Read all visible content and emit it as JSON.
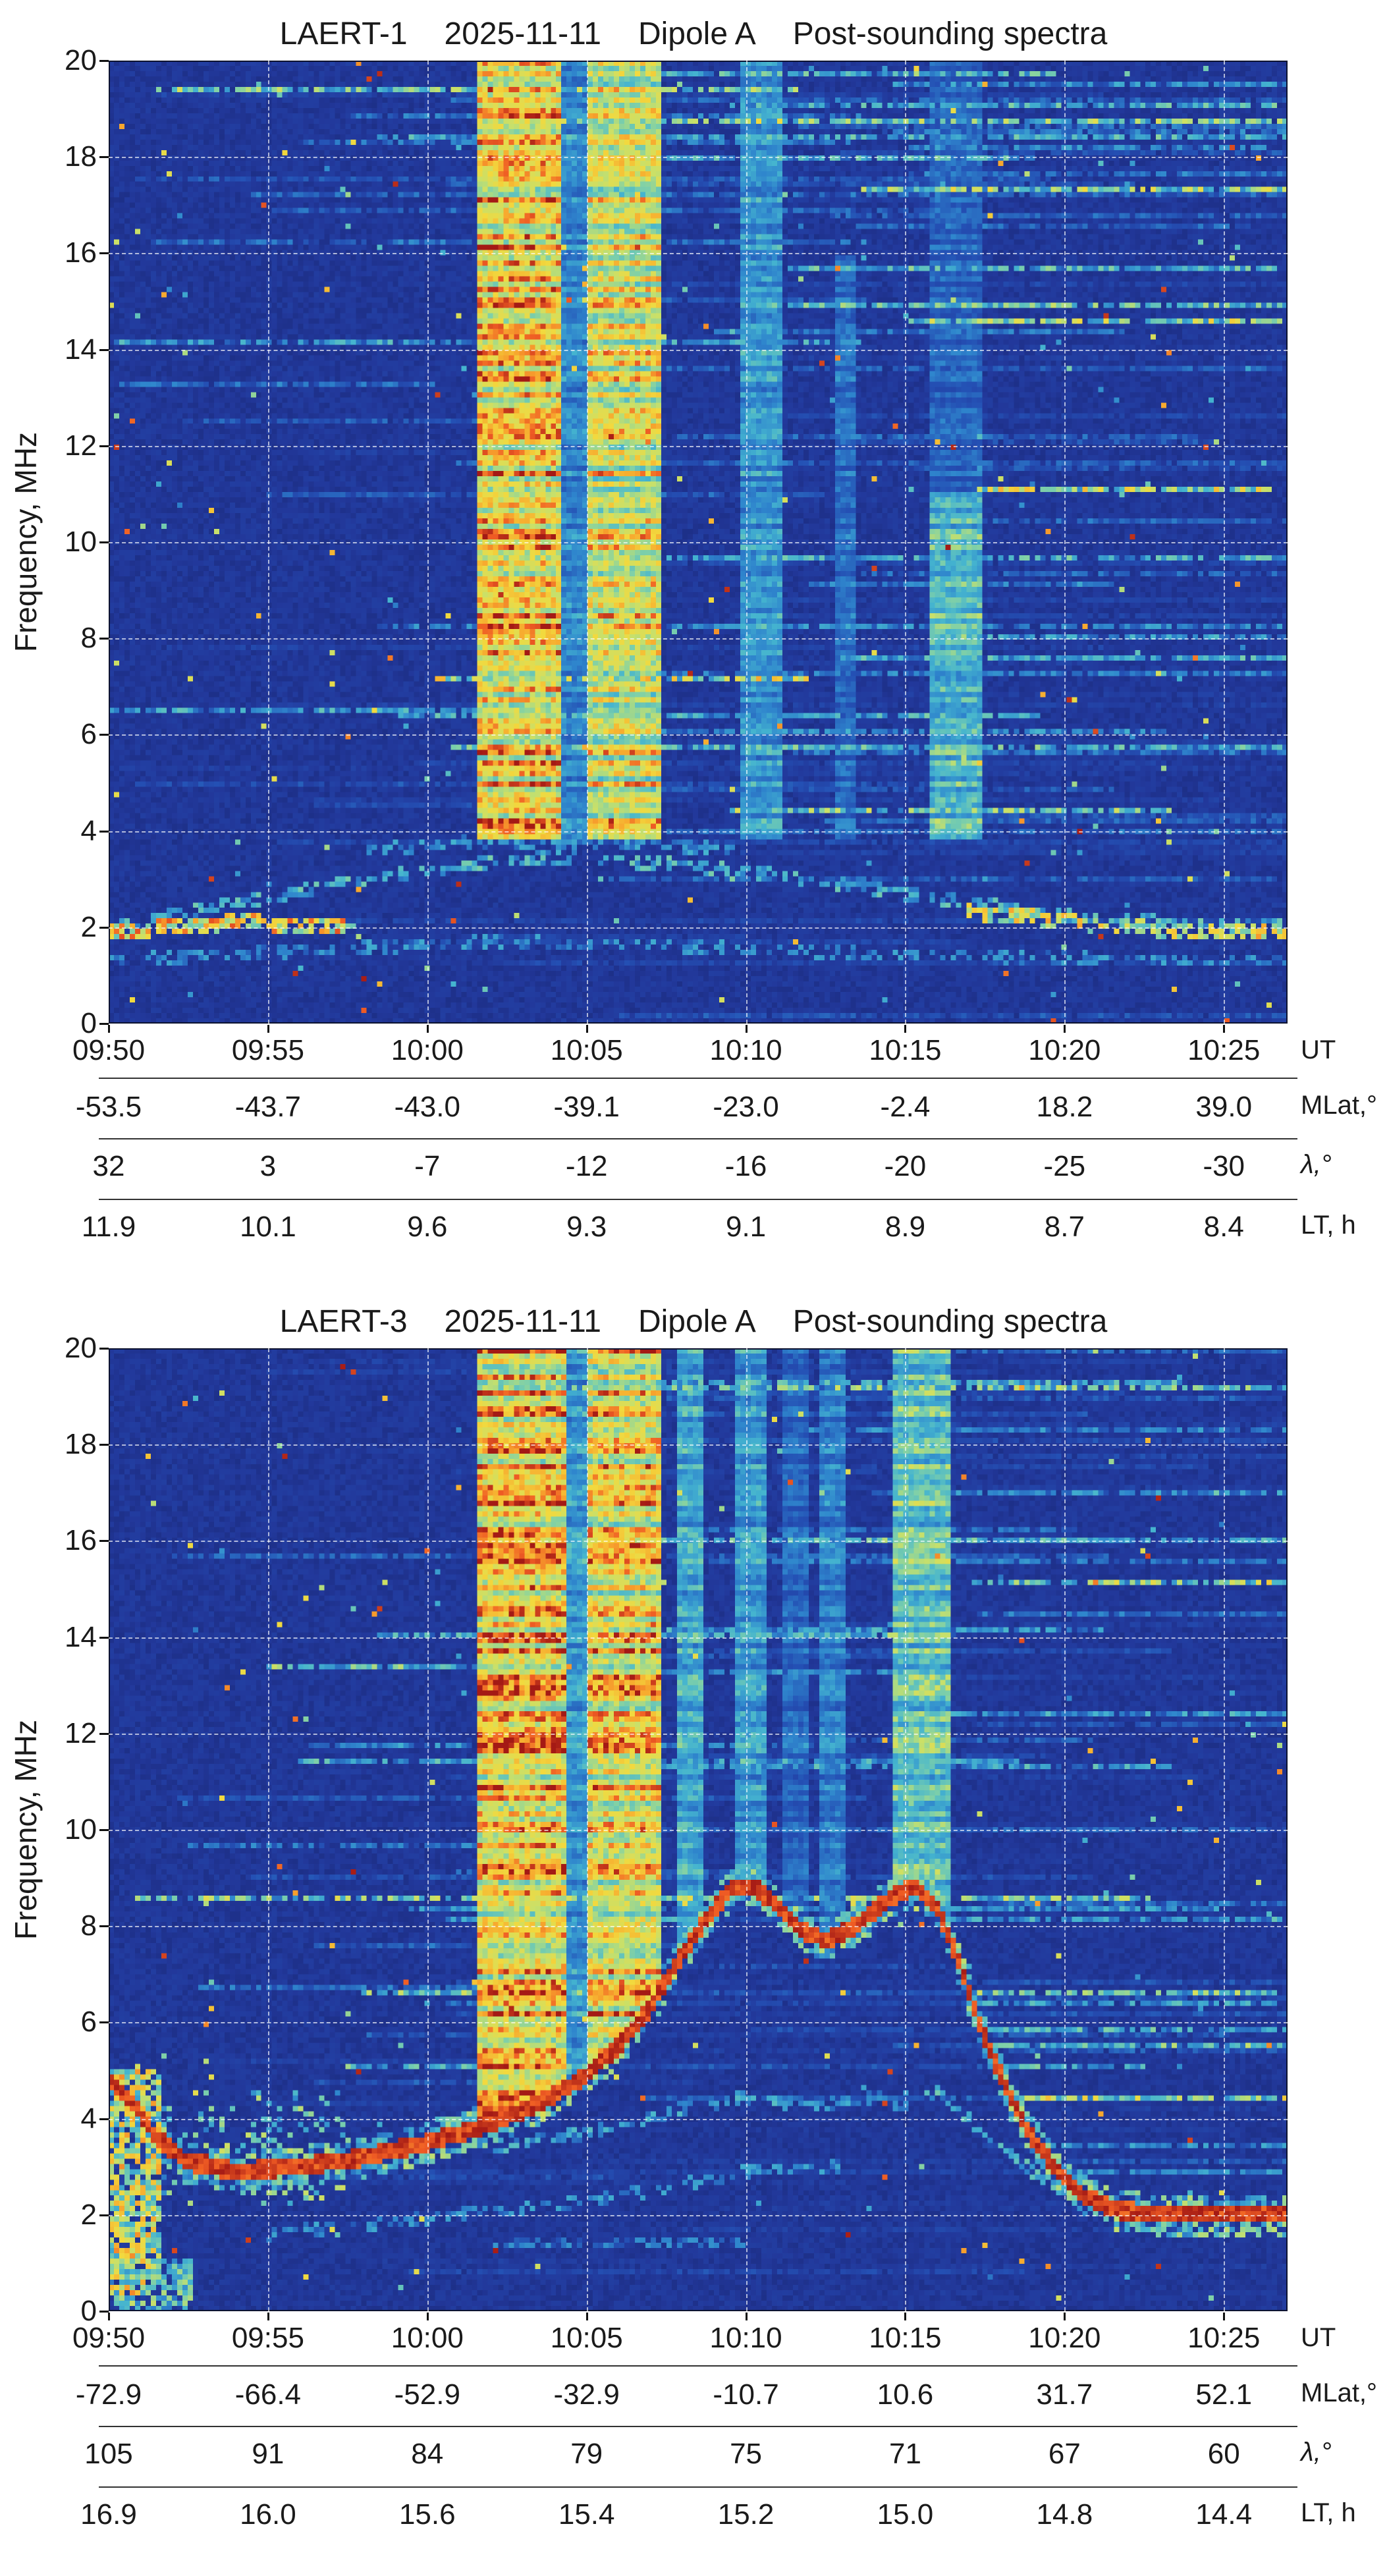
{
  "page": {
    "background": "#ffffff",
    "text_color": "#1a1a1a"
  },
  "palette": {
    "grid_color": "rgba(255,255,255,0.65)",
    "colormap_stops": [
      [
        0.0,
        "#17246f"
      ],
      [
        0.1,
        "#22389b"
      ],
      [
        0.22,
        "#2450b4"
      ],
      [
        0.34,
        "#2f86cd"
      ],
      [
        0.46,
        "#45b4cf"
      ],
      [
        0.56,
        "#7fd0a8"
      ],
      [
        0.66,
        "#c8e06a"
      ],
      [
        0.76,
        "#f2d93e"
      ],
      [
        0.85,
        "#f7a82e"
      ],
      [
        0.92,
        "#ef5c24"
      ],
      [
        1.0,
        "#a41a15"
      ]
    ]
  },
  "chart_data": [
    {
      "type": "heatmap",
      "title_parts": [
        "LAERT-1",
        "2025-11-11",
        "Dipole A",
        "Post-sounding spectra"
      ],
      "ylabel": "Frequency, MHz",
      "ylim": [
        0,
        20
      ],
      "y_ticks": [
        0,
        2,
        4,
        6,
        8,
        10,
        12,
        14,
        16,
        18,
        20
      ],
      "x_axis_label": "UT",
      "x_ticks": [
        "09:50",
        "09:55",
        "10:00",
        "10:05",
        "10:10",
        "10:15",
        "10:20",
        "10:25"
      ],
      "x_tick_minutes": [
        0,
        5,
        10,
        15,
        20,
        25,
        30,
        35
      ],
      "t_span_minutes": 37,
      "grid": true,
      "axis_rows": [
        {
          "label": "MLat,°",
          "values": [
            "-53.5",
            "-43.7",
            "-43.0",
            "-39.1",
            "-23.0",
            "-2.4",
            "18.2",
            "39.0"
          ]
        },
        {
          "label": "λ,°",
          "italic_label": true,
          "values": [
            "32",
            "3",
            "-7",
            "-12",
            "-16",
            "-20",
            "-25",
            "-30"
          ]
        },
        {
          "label": "LT, h",
          "values": [
            "11.9",
            "10.1",
            "9.6",
            "9.3",
            "9.1",
            "8.9",
            "8.7",
            "8.4"
          ]
        }
      ],
      "spectrogram_model": {
        "seed": 17,
        "cols": 224,
        "rows": 183,
        "bg": 0.06,
        "noise": 0.07,
        "streaks": {
          "density": 0.6,
          "max_add": 0.42,
          "high_f_boost": 17
        },
        "specks": 0.006,
        "signal_floor_mhz": 3.8,
        "bands": [
          {
            "t0": 11.5,
            "t1": 14.2,
            "f1": 20,
            "v": 1.0
          },
          {
            "t0": 14.2,
            "t1": 15.0,
            "f1": 20,
            "v": 0.45
          },
          {
            "t0": 15.0,
            "t1": 17.3,
            "f1": 20,
            "v": 0.9
          },
          {
            "t0": 19.8,
            "t1": 21.2,
            "f1": 20,
            "v": 0.5
          },
          {
            "t0": 22.8,
            "t1": 23.5,
            "f1": 16,
            "v": 0.38
          },
          {
            "t0": 25.8,
            "t1": 27.5,
            "f1": 11,
            "v": 0.62
          },
          {
            "t0": 25.8,
            "t1": 27.5,
            "f0": 11,
            "f1": 20,
            "v": 0.34
          }
        ],
        "traces": [
          {
            "pts": [
              [
                0,
                2.0
              ],
              [
                4,
                2.5
              ],
              [
                8,
                3.0
              ],
              [
                12,
                3.35
              ],
              [
                14,
                3.45
              ],
              [
                18,
                3.3
              ],
              [
                22,
                3.0
              ],
              [
                26,
                2.6
              ],
              [
                30,
                2.25
              ],
              [
                34,
                2.05
              ],
              [
                37,
                2.0
              ]
            ],
            "v": 0.5,
            "w": 0.1,
            "gap": 0.45
          },
          {
            "pts": [
              [
                0,
                1.9
              ],
              [
                2,
                2.0
              ],
              [
                4,
                2.1
              ],
              [
                6,
                2.05
              ],
              [
                8,
                1.95
              ]
            ],
            "v": 0.85,
            "w": 0.13,
            "gap": 0.3
          },
          {
            "pts": [
              [
                27,
                2.3
              ],
              [
                29,
                2.2
              ],
              [
                31,
                2.05
              ],
              [
                33,
                1.95
              ],
              [
                35,
                1.9
              ],
              [
                37,
                1.9
              ]
            ],
            "v": 0.8,
            "w": 0.13,
            "gap": 0.35
          },
          {
            "pts": [
              [
                0,
                1.3
              ],
              [
                6,
                1.5
              ],
              [
                12,
                1.7
              ],
              [
                18,
                1.6
              ],
              [
                24,
                1.45
              ],
              [
                30,
                1.35
              ],
              [
                37,
                1.3
              ]
            ],
            "v": 0.4,
            "w": 0.1,
            "gap": 0.55
          },
          {
            "pts": [
              [
                8,
                3.6
              ],
              [
                12,
                3.8
              ],
              [
                16,
                3.75
              ],
              [
                20,
                3.6
              ]
            ],
            "v": 0.42,
            "w": 0.1,
            "gap": 0.5
          }
        ],
        "regions": []
      }
    },
    {
      "type": "heatmap",
      "title_parts": [
        "LAERT-3",
        "2025-11-11",
        "Dipole A",
        "Post-sounding spectra"
      ],
      "ylabel": "Frequency, MHz",
      "ylim": [
        0,
        20
      ],
      "y_ticks": [
        0,
        2,
        4,
        6,
        8,
        10,
        12,
        14,
        16,
        18,
        20
      ],
      "x_axis_label": "UT",
      "x_ticks": [
        "09:50",
        "09:55",
        "10:00",
        "10:05",
        "10:10",
        "10:15",
        "10:20",
        "10:25"
      ],
      "x_tick_minutes": [
        0,
        5,
        10,
        15,
        20,
        25,
        30,
        35
      ],
      "t_span_minutes": 37,
      "grid": true,
      "axis_rows": [
        {
          "label": "MLat,°",
          "values": [
            "-72.9",
            "-66.4",
            "-52.9",
            "-32.9",
            "-10.7",
            "10.6",
            "31.7",
            "52.1"
          ]
        },
        {
          "label": "λ,°",
          "italic_label": true,
          "values": [
            "105",
            "91",
            "84",
            "79",
            "75",
            "71",
            "67",
            "60"
          ]
        },
        {
          "label": "LT, h",
          "values": [
            "16.9",
            "16.0",
            "15.6",
            "15.4",
            "15.2",
            "15.0",
            "14.8",
            "14.4"
          ]
        }
      ],
      "spectrogram_model": {
        "seed": 43,
        "cols": 224,
        "rows": 183,
        "bg": 0.06,
        "noise": 0.07,
        "streaks": {
          "density": 0.5,
          "max_add": 0.38,
          "high_f_boost": 17
        },
        "specks": 0.005,
        "fc_curve": [
          [
            0,
            4.8
          ],
          [
            0.8,
            4.3
          ],
          [
            1.5,
            3.6
          ],
          [
            2.5,
            3.1
          ],
          [
            4,
            2.9
          ],
          [
            6,
            3.0
          ],
          [
            8,
            3.2
          ],
          [
            10,
            3.5
          ],
          [
            12,
            3.9
          ],
          [
            13.5,
            4.3
          ],
          [
            15,
            4.9
          ],
          [
            16,
            5.5
          ],
          [
            17,
            6.3
          ],
          [
            18,
            7.4
          ],
          [
            18.8,
            8.2
          ],
          [
            19.6,
            8.8
          ],
          [
            20.3,
            8.8
          ],
          [
            21,
            8.4
          ],
          [
            21.8,
            7.9
          ],
          [
            22.5,
            7.7
          ],
          [
            23.2,
            7.9
          ],
          [
            24,
            8.3
          ],
          [
            24.8,
            8.7
          ],
          [
            25.4,
            8.8
          ],
          [
            26,
            8.4
          ],
          [
            26.6,
            7.4
          ],
          [
            27.2,
            6.2
          ],
          [
            27.8,
            5.2
          ],
          [
            28.4,
            4.3
          ],
          [
            29,
            3.6
          ],
          [
            29.8,
            2.9
          ],
          [
            30.6,
            2.4
          ],
          [
            31.6,
            2.1
          ],
          [
            33,
            2.0
          ],
          [
            37,
            2.0
          ]
        ],
        "bands": [
          {
            "t0": 11.5,
            "t1": 14.3,
            "f1": 20,
            "v": 1.0
          },
          {
            "t0": 14.3,
            "t1": 15.0,
            "f1": 20,
            "v": 0.5
          },
          {
            "t0": 15.0,
            "t1": 17.3,
            "f1": 20,
            "v": 0.95
          },
          {
            "t0": 17.8,
            "t1": 18.6,
            "f1": 20,
            "v": 0.55
          },
          {
            "t0": 19.6,
            "t1": 20.6,
            "f1": 20,
            "v": 0.5
          },
          {
            "t0": 21.2,
            "t1": 21.9,
            "f1": 20,
            "v": 0.35
          },
          {
            "t0": 22.3,
            "t1": 23.1,
            "f1": 20,
            "v": 0.42
          },
          {
            "t0": 24.6,
            "t1": 26.4,
            "f1": 20,
            "v": 0.65
          }
        ],
        "traces": [
          {
            "pts": [
              [
                5,
                1.6
              ],
              [
                8,
                1.8
              ],
              [
                11,
                2.0
              ],
              [
                14,
                2.2
              ],
              [
                17,
                2.5
              ],
              [
                20,
                2.9
              ],
              [
                23,
                3.0
              ]
            ],
            "v": 0.4,
            "w": 0.1,
            "gap": 0.55
          },
          {
            "pts": [
              [
                12,
                3.4
              ],
              [
                15,
                3.7
              ],
              [
                18,
                4.2
              ],
              [
                20,
                4.45
              ],
              [
                22,
                4.25
              ],
              [
                24,
                4.45
              ],
              [
                25.5,
                4.2
              ]
            ],
            "v": 0.45,
            "w": 0.1,
            "gap": 0.5
          },
          {
            "pts": [
              [
                26,
                4.6
              ],
              [
                27,
                4.0
              ],
              [
                28,
                3.4
              ],
              [
                29,
                2.9
              ],
              [
                30,
                2.5
              ],
              [
                31,
                2.2
              ]
            ],
            "v": 0.5,
            "w": 0.1,
            "gap": 0.4
          },
          {
            "pts": [
              [
                12,
                1.4
              ],
              [
                16,
                1.45
              ],
              [
                20,
                1.4
              ]
            ],
            "v": 0.35,
            "w": 0.1,
            "gap": 0.5
          }
        ],
        "regions": [
          {
            "t0": 0,
            "t1": 1.6,
            "f0": 0.3,
            "f1": 5.0,
            "p": 0.8,
            "v": 0.8
          },
          {
            "t0": 0,
            "t1": 2.6,
            "f0": 0,
            "f1": 1.1,
            "p": 0.7,
            "v": 0.6
          },
          {
            "t0": 1.6,
            "t1": 7.5,
            "f0": 2.2,
            "f1": 4.6,
            "p": 0.18,
            "v": 0.62
          }
        ]
      }
    }
  ]
}
